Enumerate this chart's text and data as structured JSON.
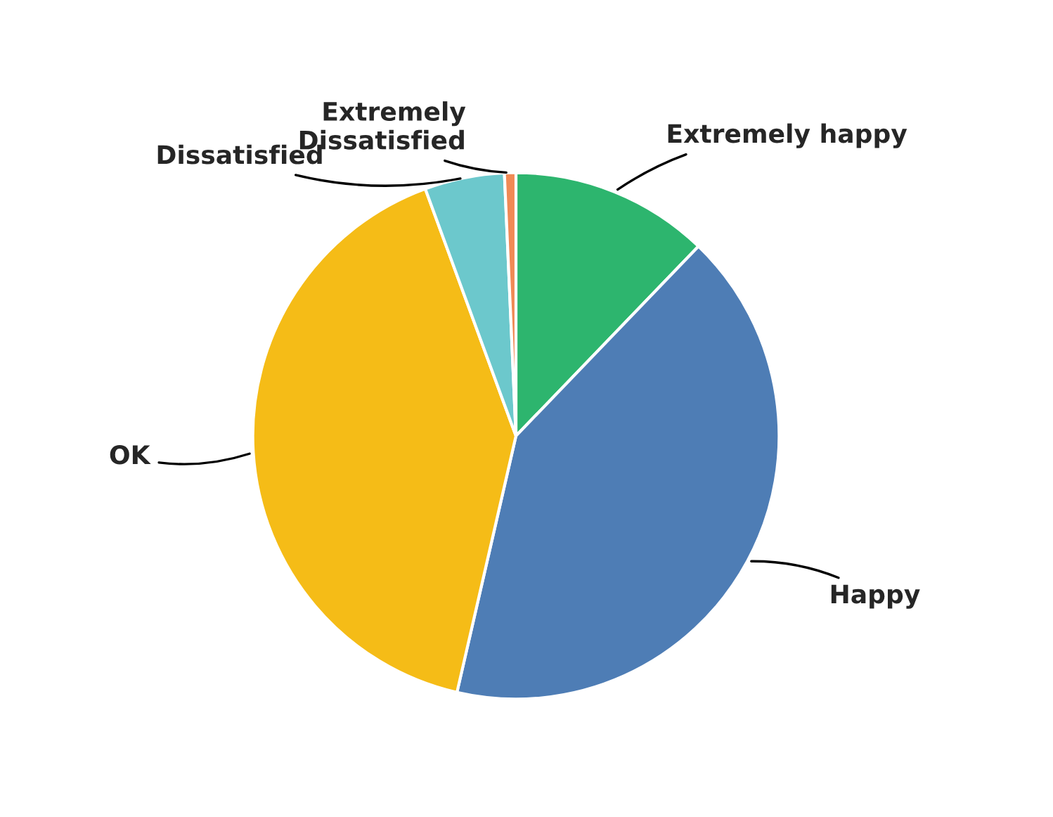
{
  "chart_data": {
    "type": "pie",
    "categories": [
      "Extremely happy",
      "Happy",
      "OK",
      "Dissatisfied",
      "Extremely\nDissatisfied"
    ],
    "values": [
      12.2,
      41.4,
      40.8,
      4.9,
      0.7
    ],
    "colors": [
      "#2db56e",
      "#4e7db5",
      "#f5bc17",
      "#6cc8cc",
      "#f08a55"
    ],
    "legend": false
  }
}
